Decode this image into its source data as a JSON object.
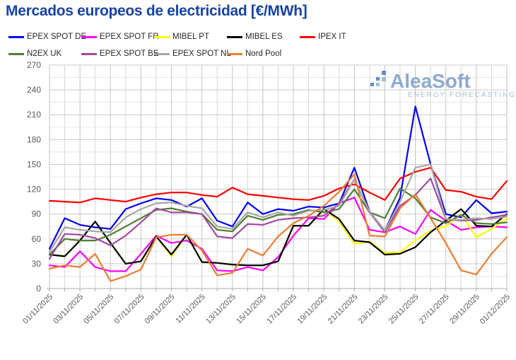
{
  "title": "Mercados europeos de electricidad [€/MWh]",
  "watermark": {
    "brand": "AleaSoft",
    "tagline": "ENERGY FORECASTING"
  },
  "axes": {
    "y_ticks": [
      0,
      30,
      60,
      90,
      120,
      150,
      180,
      210,
      240,
      270
    ],
    "x_tick_labels": [
      "01/11/2025",
      "03/11/2025",
      "05/11/2025",
      "07/11/2025",
      "09/11/2025",
      "11/11/2025",
      "13/11/2025",
      "15/11/2025",
      "17/11/2025",
      "19/11/2025",
      "21/11/2025",
      "23/11/2025",
      "25/11/2025",
      "27/11/2025",
      "29/11/2025",
      "01/12/2025"
    ]
  },
  "chart_data": {
    "type": "line",
    "title": "Mercados europeos de electricidad [€/MWh]",
    "ylabel": "€/MWh",
    "ylim": [
      0,
      270
    ],
    "ytick_step": 30,
    "grid": true,
    "legend_position": "top",
    "dates": [
      "01/11/2025",
      "02/11/2025",
      "03/11/2025",
      "04/11/2025",
      "05/11/2025",
      "06/11/2025",
      "07/11/2025",
      "08/11/2025",
      "09/11/2025",
      "10/11/2025",
      "11/11/2025",
      "12/11/2025",
      "13/11/2025",
      "14/11/2025",
      "15/11/2025",
      "16/11/2025",
      "17/11/2025",
      "18/11/2025",
      "19/11/2025",
      "20/11/2025",
      "21/11/2025",
      "22/11/2025",
      "23/11/2025",
      "24/11/2025",
      "25/11/2025",
      "26/11/2025",
      "27/11/2025",
      "28/11/2025",
      "29/11/2025",
      "30/11/2025",
      "01/12/2025"
    ],
    "series": [
      {
        "name": "EPEX SPOT DE",
        "color": "#0000ff",
        "values": [
          48,
          85,
          77,
          74,
          72,
          96,
          103,
          109,
          107,
          99,
          109,
          82,
          75,
          104,
          90,
          96,
          94,
          99,
          98,
          103,
          146,
          93,
          70,
          110,
          220,
          150,
          90,
          86,
          107,
          91,
          93
        ]
      },
      {
        "name": "EPEX SPOT FR",
        "color": "#ff00ff",
        "values": [
          28,
          26,
          45,
          26,
          21,
          21,
          42,
          64,
          55,
          58,
          48,
          22,
          21,
          26,
          22,
          38,
          64,
          85,
          84,
          103,
          110,
          71,
          68,
          75,
          66,
          95,
          82,
          71,
          74,
          75,
          74
        ]
      },
      {
        "name": "MIBEL PT",
        "color": "#ffff00",
        "values": [
          41,
          39,
          58,
          81,
          55,
          30,
          33,
          63,
          39,
          65,
          32,
          31,
          29,
          28,
          28,
          33,
          76,
          76,
          96,
          81,
          54,
          57,
          43,
          44,
          58,
          70,
          75,
          90,
          62,
          72,
          85
        ]
      },
      {
        "name": "MIBEL ES",
        "color": "#000000",
        "values": [
          41,
          39,
          58,
          81,
          55,
          30,
          33,
          63,
          41,
          65,
          32,
          31,
          29,
          28,
          28,
          33,
          76,
          76,
          96,
          84,
          58,
          56,
          41,
          42,
          50,
          68,
          82,
          96,
          76,
          75,
          90
        ]
      },
      {
        "name": "IPEX IT",
        "color": "#ff0000",
        "values": [
          106,
          105,
          104,
          109,
          107,
          105,
          110,
          114,
          116,
          116,
          113,
          111,
          122,
          114,
          112,
          110,
          108,
          107,
          112,
          121,
          126,
          116,
          107,
          133,
          141,
          146,
          119,
          117,
          111,
          108,
          130
        ]
      },
      {
        "name": "N2EX UK",
        "color": "#507e32",
        "values": [
          41,
          60,
          58,
          58,
          65,
          75,
          85,
          95,
          97,
          93,
          90,
          71,
          69,
          88,
          83,
          89,
          90,
          95,
          92,
          96,
          120,
          92,
          85,
          121,
          109,
          86,
          79,
          89,
          79,
          78,
          80
        ]
      },
      {
        "name": "EPEX SPOT BE",
        "color": "#a349a4",
        "values": [
          36,
          66,
          65,
          61,
          52,
          64,
          80,
          97,
          92,
          92,
          90,
          63,
          61,
          78,
          77,
          83,
          85,
          86,
          88,
          103,
          132,
          92,
          68,
          100,
          113,
          133,
          84,
          82,
          83,
          86,
          89
        ]
      },
      {
        "name": "EPEX SPOT NL",
        "color": "#a6a6a6",
        "values": [
          44,
          74,
          71,
          69,
          68,
          86,
          96,
          103,
          104,
          100,
          97,
          75,
          72,
          92,
          86,
          92,
          88,
          94,
          95,
          100,
          132,
          93,
          70,
          105,
          146,
          150,
          84,
          83,
          85,
          84,
          87
        ]
      },
      {
        "name": "Nord Pool",
        "color": "#ed7d31",
        "values": [
          24,
          28,
          26,
          42,
          9,
          15,
          23,
          62,
          65,
          65,
          46,
          16,
          19,
          48,
          40,
          63,
          79,
          88,
          100,
          117,
          138,
          64,
          63,
          97,
          114,
          85,
          55,
          22,
          17,
          42,
          62
        ]
      }
    ]
  }
}
